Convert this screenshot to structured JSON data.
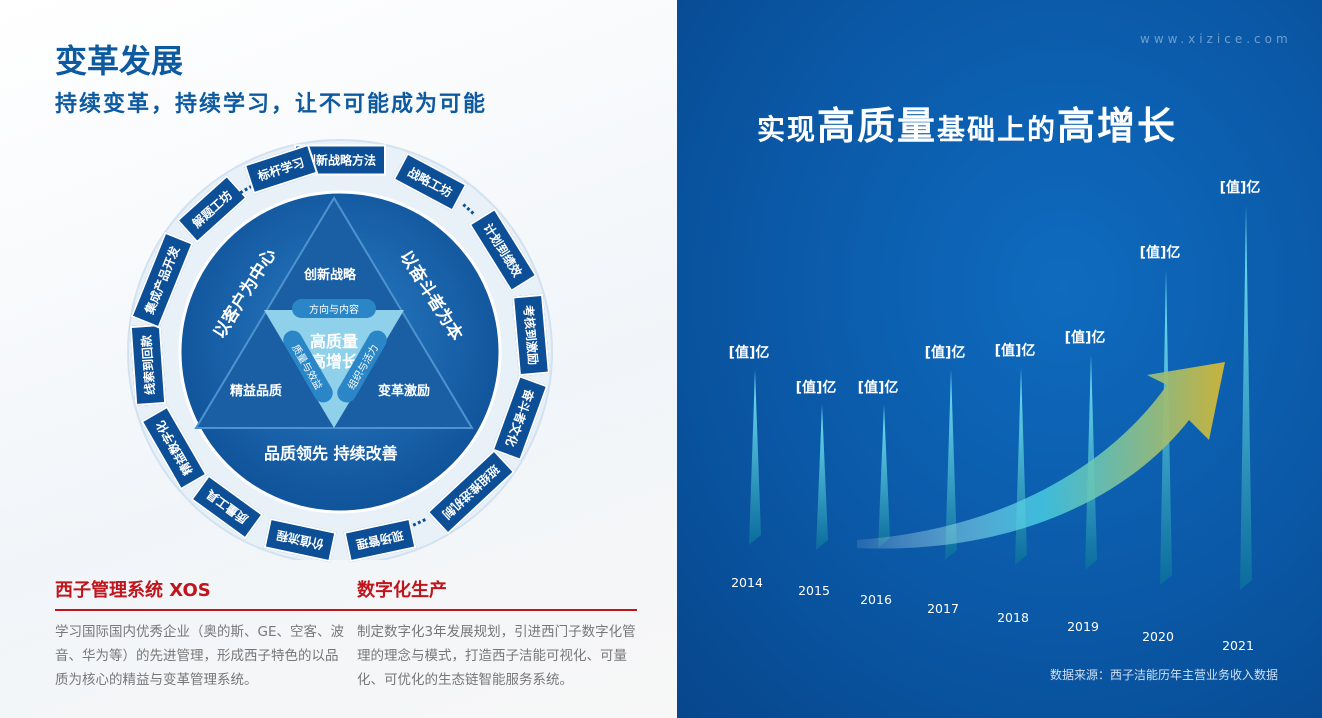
{
  "left": {
    "title": "变革发展",
    "subtitle": "持续变革，持续学习，让不可能成为可能",
    "diagram": {
      "center": [
        "高质量",
        "高增长"
      ],
      "inner_tags": {
        "top": "方向与内容",
        "left": "质量与效益",
        "right": "组织与活力"
      },
      "corners": {
        "top": "创新战略",
        "left": "精益品质",
        "right": "变革激励"
      },
      "sides": {
        "left": "以客户为中心",
        "right": "以奋斗者为本",
        "bottom": "品质领先 持续改善"
      },
      "ring": [
        "创新战略方法",
        "战略工坊",
        "…",
        "计划到绩效",
        "考核到激励",
        "奋斗者文化",
        "班组推进机制",
        "…",
        "现场管理",
        "价值流程",
        "质量工具",
        "精益数字化",
        "线索到回款",
        "集成产品开发",
        "解题工坊",
        "…",
        "标杆学习"
      ],
      "colors": {
        "dark": "#0d4f96",
        "mid": "#1a6cb5",
        "light": "#8fd0ea"
      }
    },
    "sections": [
      {
        "heading": "西子管理系统 XOS",
        "text": "学习国际国内优秀企业（奥的斯、GE、空客、波音、华为等）的先进管理，形成西子特色的以品质为核心的精益与变革管理系统。"
      },
      {
        "heading": "数字化生产",
        "text": "制定数字化3年发展规划，引进西门子数字化管理的理念与模式，打造西子洁能可视化、可量化、可优化的生态链智能服务系统。"
      }
    ],
    "accent": "#c0151b"
  },
  "right": {
    "website": "www.xizice.com",
    "title": {
      "a": "实现",
      "b": "高质量",
      "c": "基础上的",
      "d": "高增长"
    },
    "source": "数据来源：西子洁能历年主营业务收入数据"
  },
  "chart_data": {
    "type": "bar",
    "title": "实现高质量基础上的高增长",
    "categories": [
      "2014",
      "2015",
      "2016",
      "2017",
      "2018",
      "2019",
      "2020",
      "2021"
    ],
    "data_labels": [
      "[值]亿",
      "[值]亿",
      "[值]亿",
      "[值]亿",
      "[值]亿",
      "[值]亿",
      "[值]亿",
      "[值]亿"
    ],
    "values": [
      170,
      135,
      135,
      170,
      172,
      185,
      270,
      335
    ],
    "xlabel": "",
    "ylabel": "",
    "trend_arrow": "rising",
    "colors": {
      "bar": "#3fd0e0",
      "arrow_start": "#ffffff",
      "arrow_end": "#c9b23a"
    }
  }
}
